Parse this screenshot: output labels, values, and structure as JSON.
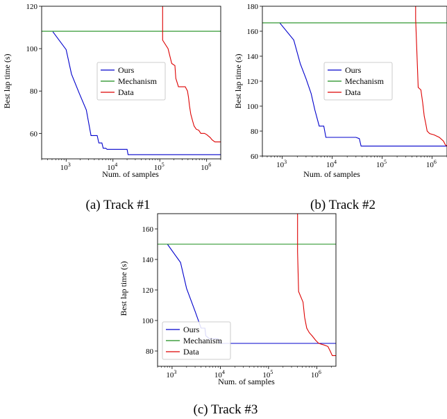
{
  "chart_data": [
    {
      "type": "line",
      "caption": "(a) Track #1",
      "xlabel": "Num. of samples",
      "ylabel": "Best lap time (s)",
      "xscale": "log",
      "xlim": [
        300,
        2000000
      ],
      "ylim": [
        48,
        120
      ],
      "xticks": [
        {
          "value": 1000,
          "base": "10",
          "exp": "3"
        },
        {
          "value": 10000,
          "base": "10",
          "exp": "4"
        },
        {
          "value": 100000,
          "base": "10",
          "exp": "5"
        },
        {
          "value": 1000000,
          "base": "10",
          "exp": "6"
        }
      ],
      "yticks": [
        60,
        80,
        100,
        120
      ],
      "legend": {
        "position": "center"
      },
      "series": [
        {
          "name": "Ours",
          "color": "#0000cc",
          "points": [
            [
              520,
              108
            ],
            [
              1000,
              99.5
            ],
            [
              1300,
              88
            ],
            [
              1900,
              79
            ],
            [
              2700,
              71
            ],
            [
              3400,
              59
            ],
            [
              4600,
              59
            ],
            [
              5000,
              55.5
            ],
            [
              5800,
              55.5
            ],
            [
              6200,
              53
            ],
            [
              7000,
              53
            ],
            [
              7500,
              52.5
            ],
            [
              20000,
              52.5
            ],
            [
              21000,
              50
            ],
            [
              2000000,
              50
            ]
          ]
        },
        {
          "name": "Mechanism",
          "color": "#1a8c1a",
          "points": [
            [
              300,
              108.2
            ],
            [
              2000000,
              108.2
            ]
          ]
        },
        {
          "name": "Data",
          "color": "#dd0000",
          "points": [
            [
              115000,
              120
            ],
            [
              115000,
              104
            ],
            [
              150000,
              100
            ],
            [
              180000,
              93
            ],
            [
              210000,
              92
            ],
            [
              220000,
              86
            ],
            [
              250000,
              82
            ],
            [
              350000,
              82
            ],
            [
              390000,
              80
            ],
            [
              410000,
              77
            ],
            [
              430000,
              73
            ],
            [
              460000,
              69
            ],
            [
              500000,
              66
            ],
            [
              540000,
              63.5
            ],
            [
              600000,
              62
            ],
            [
              680000,
              61.5
            ],
            [
              750000,
              60
            ],
            [
              900000,
              60
            ],
            [
              1000000,
              59.5
            ],
            [
              1200000,
              58
            ],
            [
              1300000,
              57
            ],
            [
              1500000,
              56
            ],
            [
              2000000,
              56
            ]
          ]
        }
      ]
    },
    {
      "type": "line",
      "caption": "(b) Track #2",
      "xlabel": "Num. of samples",
      "ylabel": "Best lap time (s)",
      "xscale": "log",
      "xlim": [
        400,
        2000000
      ],
      "ylim": [
        60,
        180
      ],
      "xticks": [
        {
          "value": 1000,
          "base": "10",
          "exp": "3"
        },
        {
          "value": 10000,
          "base": "10",
          "exp": "4"
        },
        {
          "value": 100000,
          "base": "10",
          "exp": "5"
        },
        {
          "value": 1000000,
          "base": "10",
          "exp": "6"
        }
      ],
      "yticks": [
        60,
        80,
        100,
        120,
        140,
        160,
        180
      ],
      "legend": {
        "position": "center"
      },
      "series": [
        {
          "name": "Ours",
          "color": "#0000cc",
          "points": [
            [
              900,
              166.5
            ],
            [
              1700,
              153
            ],
            [
              2300,
              134
            ],
            [
              3000,
              122
            ],
            [
              3800,
              110
            ],
            [
              4500,
              97
            ],
            [
              5500,
              84
            ],
            [
              6800,
              84
            ],
            [
              7500,
              75
            ],
            [
              30000,
              75
            ],
            [
              35000,
              74
            ],
            [
              38000,
              68
            ],
            [
              2000000,
              68
            ]
          ]
        },
        {
          "name": "Mechanism",
          "color": "#1a8c1a",
          "points": [
            [
              400,
              166.7
            ],
            [
              2000000,
              166.7
            ]
          ]
        },
        {
          "name": "Data",
          "color": "#dd0000",
          "points": [
            [
              470000,
              180
            ],
            [
              470000,
              170
            ],
            [
              530000,
              115
            ],
            [
              600000,
              113
            ],
            [
              650000,
              103
            ],
            [
              700000,
              92
            ],
            [
              750000,
              86
            ],
            [
              800000,
              80
            ],
            [
              900000,
              78
            ],
            [
              1100000,
              77
            ],
            [
              1400000,
              75
            ],
            [
              1700000,
              72
            ],
            [
              1850000,
              69
            ],
            [
              2000000,
              68
            ]
          ]
        }
      ]
    },
    {
      "type": "line",
      "caption": "(c) Track #3",
      "xlabel": "Num. of samples",
      "ylabel": "Best lap time (s)",
      "xscale": "log",
      "xlim": [
        500,
        2500000
      ],
      "ylim": [
        70,
        170
      ],
      "xticks": [
        {
          "value": 1000,
          "base": "10",
          "exp": "3"
        },
        {
          "value": 10000,
          "base": "10",
          "exp": "4"
        },
        {
          "value": 100000,
          "base": "10",
          "exp": "5"
        },
        {
          "value": 1000000,
          "base": "10",
          "exp": "6"
        }
      ],
      "yticks": [
        80,
        100,
        120,
        140,
        160
      ],
      "legend": {
        "position": "lower-left"
      },
      "series": [
        {
          "name": "Ours",
          "color": "#0000cc",
          "points": [
            [
              800,
              150
            ],
            [
              1500,
              138
            ],
            [
              2000,
              121
            ],
            [
              3000,
              106
            ],
            [
              4000,
              95
            ],
            [
              4800,
              95
            ],
            [
              5000,
              90
            ],
            [
              6000,
              88
            ],
            [
              9000,
              88
            ],
            [
              10000,
              85
            ],
            [
              2500000,
              85
            ]
          ]
        },
        {
          "name": "Mechanism",
          "color": "#1a8c1a",
          "points": [
            [
              500,
              150
            ],
            [
              2500000,
              150
            ]
          ]
        },
        {
          "name": "Data",
          "color": "#dd0000",
          "points": [
            [
              400000,
              170
            ],
            [
              400000,
              145
            ],
            [
              420000,
              119
            ],
            [
              520000,
              112
            ],
            [
              560000,
              102
            ],
            [
              620000,
              95
            ],
            [
              700000,
              92
            ],
            [
              800000,
              90
            ],
            [
              950000,
              87
            ],
            [
              1100000,
              85
            ],
            [
              1400000,
              84
            ],
            [
              1700000,
              83
            ],
            [
              1900000,
              80
            ],
            [
              2100000,
              77
            ],
            [
              2500000,
              77
            ]
          ]
        }
      ]
    }
  ]
}
